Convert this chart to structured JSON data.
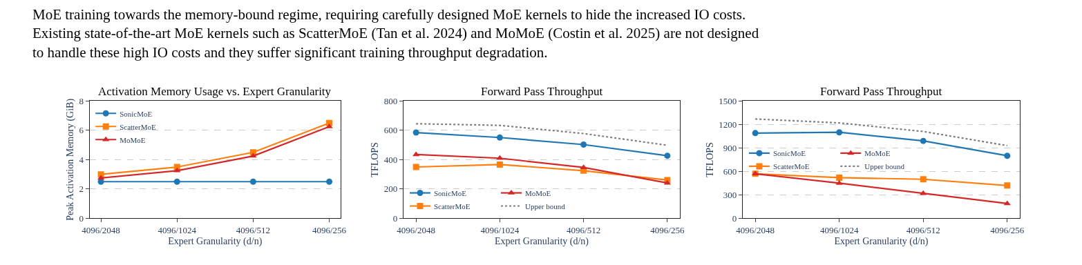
{
  "chart_data": [
    {
      "type": "line",
      "title": "Activation Memory Usage vs. Expert Granularity",
      "xlabel": "Expert Granularity (d/n)",
      "ylabel": "Peak Activation Memory (GiB)",
      "annotations": [
        "MoE training towards the memory-bound regime, requiring carefully designed MoE kernels to hide the increased IO costs.\nExisting state-of-the-art MoE kernels such as ScatterMoE (Tan et al. 2024) and MoMoE (Costin et al. 2025) are not designed\nto handle these high IO costs and they suffer significant training throughput degradation."
      ],
      "categories": [
        "4096/2048",
        "4096/1024",
        "4096/512",
        "4096/256"
      ],
      "series": [
        {
          "name": "SonicMoE",
          "color": "#1f77b4",
          "marker": "circle",
          "values": [
            2.5,
            2.5,
            2.5,
            2.5
          ]
        },
        {
          "name": "ScatterMoE",
          "color": "#ff7f0e",
          "marker": "square",
          "values": [
            3.0,
            3.5,
            4.5,
            6.5
          ]
        },
        {
          "name": "MoMoE",
          "color": "#d62728",
          "marker": "triangle",
          "values": [
            2.75,
            3.25,
            4.25,
            6.25
          ]
        }
      ],
      "ylim": [
        0,
        8
      ],
      "yticks": [
        0,
        2,
        4,
        6,
        8
      ],
      "grid": "y",
      "legend": "top left"
    },
    {
      "type": "line",
      "title": "Forward Pass Throughput",
      "xlabel": "Expert Granularity (d/n)",
      "ylabel": "TFLOPS",
      "categories": [
        "4096/2048",
        "4096/1024",
        "4096/512",
        "4096/256"
      ],
      "series": [
        {
          "name": "SonicMoE",
          "color": "#1f77b4",
          "marker": "circle",
          "values": [
            585,
            551,
            503,
            427
          ]
        },
        {
          "name": "ScatterMoE",
          "color": "#ff7f0e",
          "marker": "square",
          "values": [
            350,
            367,
            325,
            261
          ]
        },
        {
          "name": "MoMoE",
          "color": "#d62728",
          "marker": "triangle",
          "values": [
            435,
            410,
            347,
            241
          ]
        },
        {
          "name": "Upper bound",
          "color": "#7f7f7f",
          "marker": "none",
          "line_style": "dotted",
          "values": [
            645,
            634,
            578,
            498
          ]
        }
      ],
      "ylim": [
        0,
        800
      ],
      "yticks": [
        0,
        200,
        400,
        600,
        800
      ],
      "grid": "y",
      "legend": "bottom left"
    },
    {
      "type": "line",
      "title": "Forward Pass Throughput",
      "xlabel": "Expert Granularity (d/n)",
      "ylabel": "TFLOPS",
      "categories": [
        "4096/2048",
        "4096/1024",
        "4096/512",
        "4096/256"
      ],
      "series": [
        {
          "name": "SonicMoE",
          "color": "#1f77b4",
          "marker": "circle",
          "values": [
            1090,
            1100,
            990,
            800
          ]
        },
        {
          "name": "ScatterMoE",
          "color": "#ff7f0e",
          "marker": "square",
          "values": [
            570,
            520,
            500,
            420
          ]
        },
        {
          "name": "MoMoE",
          "color": "#d62728",
          "marker": "triangle",
          "values": [
            570,
            450,
            320,
            190
          ]
        },
        {
          "name": "Upper bound",
          "color": "#7f7f7f",
          "marker": "none",
          "line_style": "dotted",
          "values": [
            1270,
            1220,
            1110,
            930
          ]
        }
      ],
      "ylim": [
        0,
        1500
      ],
      "yticks": [
        0,
        300,
        600,
        900,
        1200,
        1500
      ],
      "grid": "y",
      "legend": "left"
    }
  ]
}
